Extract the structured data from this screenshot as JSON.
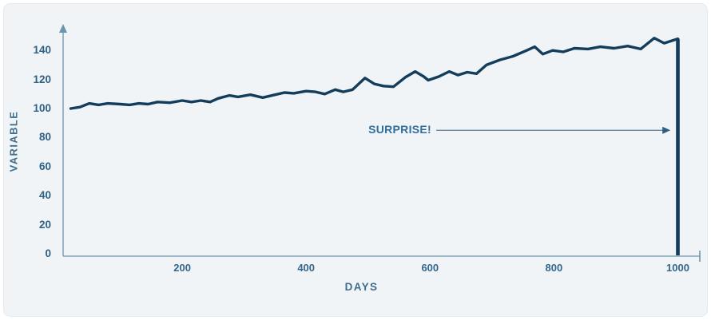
{
  "chart_data": {
    "type": "line",
    "title": "",
    "xlabel": "DAYS",
    "ylabel": "VARIABLE",
    "grid": false,
    "legend": "none",
    "xlim": [
      0,
      1035
    ],
    "ylim": [
      0,
      155
    ],
    "x_ticks": [
      200,
      400,
      600,
      800,
      1000
    ],
    "y_ticks": [
      0,
      20,
      40,
      60,
      80,
      100,
      120,
      140
    ],
    "annotation": {
      "text": "SURPRISE!",
      "arrow_from_day": 610,
      "arrow_to_day": 988,
      "y_value": 85,
      "meaning": "arrow points to sudden collapse of the line at day 1000"
    },
    "series": [
      {
        "name": "variable",
        "points": [
          [
            20,
            100
          ],
          [
            35,
            101
          ],
          [
            50,
            103.5
          ],
          [
            65,
            102.5
          ],
          [
            80,
            103.5
          ],
          [
            100,
            103
          ],
          [
            115,
            102.5
          ],
          [
            130,
            103.5
          ],
          [
            145,
            103
          ],
          [
            160,
            104.5
          ],
          [
            180,
            104
          ],
          [
            200,
            105.5
          ],
          [
            215,
            104.5
          ],
          [
            230,
            105.5
          ],
          [
            245,
            104.5
          ],
          [
            258,
            107
          ],
          [
            276,
            109
          ],
          [
            290,
            108
          ],
          [
            310,
            109.5
          ],
          [
            330,
            107.5
          ],
          [
            350,
            109.5
          ],
          [
            365,
            111
          ],
          [
            380,
            110.5
          ],
          [
            400,
            112
          ],
          [
            415,
            111.5
          ],
          [
            430,
            110
          ],
          [
            447,
            113
          ],
          [
            460,
            111.5
          ],
          [
            475,
            113
          ],
          [
            495,
            121
          ],
          [
            510,
            117
          ],
          [
            525,
            115.5
          ],
          [
            541,
            115
          ],
          [
            560,
            121.5
          ],
          [
            576,
            125.5
          ],
          [
            590,
            122
          ],
          [
            597,
            119.5
          ],
          [
            614,
            122
          ],
          [
            631,
            125.5
          ],
          [
            645,
            123
          ],
          [
            660,
            125
          ],
          [
            675,
            124
          ],
          [
            691,
            130
          ],
          [
            713,
            133.5
          ],
          [
            734,
            136
          ],
          [
            756,
            140
          ],
          [
            769,
            142.5
          ],
          [
            782,
            137.5
          ],
          [
            798,
            140
          ],
          [
            815,
            139
          ],
          [
            833,
            141.5
          ],
          [
            855,
            141
          ],
          [
            875,
            142.5
          ],
          [
            897,
            141.5
          ],
          [
            919,
            143
          ],
          [
            940,
            141
          ],
          [
            962,
            148.5
          ],
          [
            978,
            145
          ],
          [
            1000,
            148
          ]
        ]
      }
    ],
    "drop_line": {
      "x": 1000,
      "from": 148,
      "to": 0
    },
    "colors": {
      "page": "#ffffff",
      "background": "#f0f4f6",
      "line": "#143d5c",
      "axis": "#6d95ad",
      "tick_label": "#2f6186",
      "axis_label": "#3f6d8e",
      "annotation_text": "#2e6f9e",
      "arrow": "#6389a3",
      "arrowhead": "#2d5f82"
    }
  }
}
